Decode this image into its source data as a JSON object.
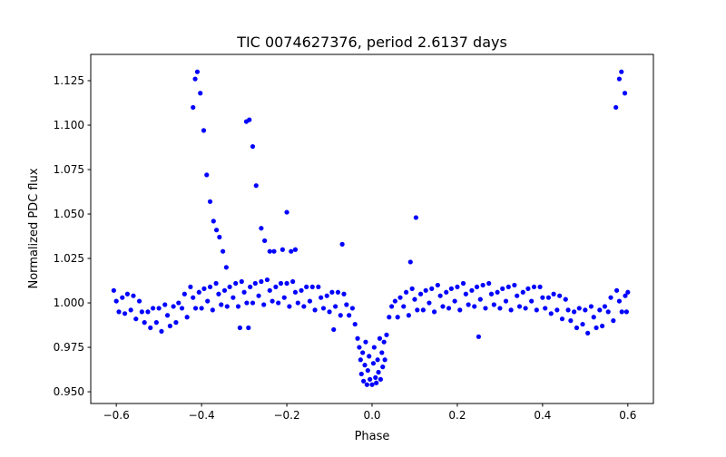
{
  "chart_data": {
    "type": "scatter",
    "title": "TIC 0074627376, period 2.6137 days",
    "xlabel": "Phase",
    "ylabel": "Normalized PDC flux",
    "xlim": [
      -0.66,
      0.66
    ],
    "ylim": [
      0.9434,
      1.1398
    ],
    "xticks": [
      -0.6,
      -0.4,
      -0.2,
      0.0,
      0.2,
      0.4,
      0.6
    ],
    "xtick_labels": [
      "−0.6",
      "−0.4",
      "−0.2",
      "0.0",
      "0.2",
      "0.4",
      "0.6"
    ],
    "yticks": [
      0.95,
      0.975,
      1.0,
      1.025,
      1.05,
      1.075,
      1.1,
      1.125
    ],
    "ytick_labels": [
      "0.950",
      "0.975",
      "1.000",
      "1.025",
      "1.050",
      "1.075",
      "1.100",
      "1.125"
    ],
    "grid": false,
    "marker_color": "#0000ff",
    "series": [
      {
        "name": "flux",
        "points": [
          [
            -0.606,
            1.007
          ],
          [
            -0.6,
            1.001
          ],
          [
            -0.594,
            0.995
          ],
          [
            -0.586,
            1.003
          ],
          [
            -0.58,
            0.994
          ],
          [
            -0.574,
            1.005
          ],
          [
            -0.566,
            0.996
          ],
          [
            -0.56,
            1.004
          ],
          [
            -0.554,
            0.991
          ],
          [
            -0.546,
            1.001
          ],
          [
            -0.54,
            0.995
          ],
          [
            -0.534,
            0.989
          ],
          [
            -0.526,
            0.995
          ],
          [
            -0.52,
            0.986
          ],
          [
            -0.514,
            0.997
          ],
          [
            -0.506,
            0.989
          ],
          [
            -0.5,
            0.997
          ],
          [
            -0.494,
            0.984
          ],
          [
            -0.486,
            0.999
          ],
          [
            -0.48,
            0.993
          ],
          [
            -0.474,
            0.987
          ],
          [
            -0.466,
            0.998
          ],
          [
            -0.46,
            0.989
          ],
          [
            -0.454,
            1.0
          ],
          [
            -0.446,
            0.997
          ],
          [
            -0.44,
            1.005
          ],
          [
            -0.434,
            0.992
          ],
          [
            -0.426,
            1.009
          ],
          [
            -0.42,
            1.003
          ],
          [
            -0.414,
            0.997
          ],
          [
            -0.406,
            1.006
          ],
          [
            -0.4,
            0.997
          ],
          [
            -0.394,
            1.008
          ],
          [
            -0.386,
            1.001
          ],
          [
            -0.38,
            1.009
          ],
          [
            -0.374,
            0.996
          ],
          [
            -0.366,
            1.011
          ],
          [
            -0.36,
            1.005
          ],
          [
            -0.354,
            0.999
          ],
          [
            -0.346,
            1.007
          ],
          [
            -0.34,
            0.998
          ],
          [
            -0.334,
            1.009
          ],
          [
            -0.326,
            1.003
          ],
          [
            -0.32,
            1.011
          ],
          [
            -0.314,
            0.998
          ],
          [
            -0.306,
            1.012
          ],
          [
            -0.3,
            1.006
          ],
          [
            -0.294,
            1.0
          ],
          [
            -0.286,
            1.009
          ],
          [
            -0.28,
            1.0
          ],
          [
            -0.274,
            1.011
          ],
          [
            -0.266,
            1.004
          ],
          [
            -0.26,
            1.012
          ],
          [
            -0.254,
            0.999
          ],
          [
            -0.246,
            1.013
          ],
          [
            -0.24,
            1.007
          ],
          [
            -0.234,
            1.001
          ],
          [
            -0.226,
            1.009
          ],
          [
            -0.22,
            1.0
          ],
          [
            -0.214,
            1.011
          ],
          [
            -0.206,
            1.003
          ],
          [
            -0.2,
            1.011
          ],
          [
            -0.194,
            0.998
          ],
          [
            -0.186,
            1.012
          ],
          [
            -0.18,
            1.006
          ],
          [
            -0.174,
            1.0
          ],
          [
            -0.166,
            1.007
          ],
          [
            -0.16,
            0.998
          ],
          [
            -0.154,
            1.009
          ],
          [
            -0.146,
            1.001
          ],
          [
            -0.14,
            1.009
          ],
          [
            -0.134,
            0.996
          ],
          [
            -0.126,
            1.009
          ],
          [
            -0.12,
            1.003
          ],
          [
            -0.114,
            0.997
          ],
          [
            -0.106,
            1.004
          ],
          [
            -0.1,
            0.995
          ],
          [
            -0.094,
            1.006
          ],
          [
            -0.086,
            0.998
          ],
          [
            -0.08,
            1.006
          ],
          [
            -0.074,
            0.993
          ],
          [
            -0.066,
            1.005
          ],
          [
            -0.06,
            0.999
          ],
          [
            -0.054,
            0.993
          ],
          [
            -0.046,
            0.997
          ],
          [
            -0.04,
            0.988
          ],
          [
            -0.034,
            0.98
          ],
          [
            -0.03,
            0.975
          ],
          [
            -0.027,
            0.968
          ],
          [
            -0.025,
            0.96
          ],
          [
            -0.022,
            0.972
          ],
          [
            -0.02,
            0.956
          ],
          [
            -0.017,
            0.965
          ],
          [
            -0.015,
            0.978
          ],
          [
            -0.012,
            0.954
          ],
          [
            -0.01,
            0.962
          ],
          [
            -0.007,
            0.97
          ],
          [
            -0.005,
            0.957
          ],
          [
            0.0,
            0.954
          ],
          [
            0.003,
            0.966
          ],
          [
            0.005,
            0.975
          ],
          [
            0.008,
            0.958
          ],
          [
            0.01,
            0.955
          ],
          [
            0.013,
            0.968
          ],
          [
            0.015,
            0.961
          ],
          [
            0.018,
            0.98
          ],
          [
            0.02,
            0.957
          ],
          [
            0.023,
            0.972
          ],
          [
            0.025,
            0.964
          ],
          [
            0.028,
            0.978
          ],
          [
            0.03,
            0.968
          ],
          [
            0.034,
            0.982
          ],
          [
            0.04,
            0.992
          ],
          [
            0.046,
            0.998
          ],
          [
            0.054,
            1.001
          ],
          [
            0.06,
            0.992
          ],
          [
            0.066,
            1.003
          ],
          [
            0.074,
            0.998
          ],
          [
            0.08,
            1.006
          ],
          [
            0.086,
            0.993
          ],
          [
            0.094,
            1.008
          ],
          [
            0.1,
            1.002
          ],
          [
            0.106,
            0.996
          ],
          [
            0.114,
            1.005
          ],
          [
            0.12,
            0.996
          ],
          [
            0.126,
            1.007
          ],
          [
            0.134,
            1.0
          ],
          [
            0.14,
            1.008
          ],
          [
            0.146,
            0.995
          ],
          [
            0.154,
            1.01
          ],
          [
            0.16,
            1.004
          ],
          [
            0.166,
            0.998
          ],
          [
            0.174,
            1.006
          ],
          [
            0.18,
            0.997
          ],
          [
            0.186,
            1.008
          ],
          [
            0.194,
            1.001
          ],
          [
            0.2,
            1.009
          ],
          [
            0.206,
            0.996
          ],
          [
            0.214,
            1.011
          ],
          [
            0.22,
            1.005
          ],
          [
            0.226,
            0.999
          ],
          [
            0.234,
            1.007
          ],
          [
            0.24,
            0.998
          ],
          [
            0.246,
            1.009
          ],
          [
            0.254,
            1.002
          ],
          [
            0.26,
            1.01
          ],
          [
            0.266,
            0.997
          ],
          [
            0.274,
            1.011
          ],
          [
            0.28,
            1.005
          ],
          [
            0.286,
            0.999
          ],
          [
            0.294,
            1.006
          ],
          [
            0.3,
            0.997
          ],
          [
            0.306,
            1.008
          ],
          [
            0.314,
            1.001
          ],
          [
            0.32,
            1.009
          ],
          [
            0.326,
            0.996
          ],
          [
            0.334,
            1.01
          ],
          [
            0.34,
            1.004
          ],
          [
            0.346,
            0.998
          ],
          [
            0.354,
            1.006
          ],
          [
            0.36,
            0.997
          ],
          [
            0.366,
            1.008
          ],
          [
            0.374,
            1.001
          ],
          [
            0.38,
            1.009
          ],
          [
            0.386,
            0.996
          ],
          [
            0.394,
            1.009
          ],
          [
            0.4,
            1.003
          ],
          [
            0.406,
            0.997
          ],
          [
            0.414,
            1.003
          ],
          [
            0.42,
            0.994
          ],
          [
            0.426,
            1.005
          ],
          [
            0.434,
            0.996
          ],
          [
            0.44,
            1.004
          ],
          [
            0.446,
            0.991
          ],
          [
            0.454,
            1.002
          ],
          [
            0.46,
            0.996
          ],
          [
            0.466,
            0.99
          ],
          [
            0.474,
            0.995
          ],
          [
            0.48,
            0.986
          ],
          [
            0.486,
            0.997
          ],
          [
            0.494,
            0.988
          ],
          [
            0.5,
            0.996
          ],
          [
            0.506,
            0.983
          ],
          [
            0.514,
            0.998
          ],
          [
            0.52,
            0.992
          ],
          [
            0.526,
            0.986
          ],
          [
            0.534,
            0.996
          ],
          [
            0.54,
            0.987
          ],
          [
            0.546,
            0.998
          ],
          [
            0.554,
            0.995
          ],
          [
            0.56,
            1.003
          ],
          [
            0.566,
            0.99
          ],
          [
            0.574,
            1.007
          ],
          [
            0.58,
            1.001
          ],
          [
            0.586,
            0.995
          ],
          [
            0.594,
            1.004
          ],
          [
            0.597,
            0.995
          ],
          [
            0.6,
            1.006
          ],
          [
            -0.42,
            1.11
          ],
          [
            -0.415,
            1.126
          ],
          [
            -0.41,
            1.13
          ],
          [
            -0.403,
            1.118
          ],
          [
            -0.395,
            1.097
          ],
          [
            -0.388,
            1.072
          ],
          [
            -0.38,
            1.057
          ],
          [
            -0.372,
            1.046
          ],
          [
            -0.365,
            1.041
          ],
          [
            -0.358,
            1.037
          ],
          [
            -0.35,
            1.029
          ],
          [
            -0.342,
            1.02
          ],
          [
            -0.295,
            1.102
          ],
          [
            -0.288,
            1.103
          ],
          [
            -0.28,
            1.088
          ],
          [
            -0.272,
            1.066
          ],
          [
            -0.26,
            1.042
          ],
          [
            -0.252,
            1.035
          ],
          [
            -0.24,
            1.029
          ],
          [
            -0.23,
            1.029
          ],
          [
            -0.21,
            1.03
          ],
          [
            -0.2,
            1.051
          ],
          [
            -0.19,
            1.029
          ],
          [
            -0.18,
            1.03
          ],
          [
            -0.07,
            1.033
          ],
          [
            0.09,
            1.023
          ],
          [
            0.103,
            1.048
          ],
          [
            0.572,
            1.11
          ],
          [
            0.58,
            1.126
          ],
          [
            0.585,
            1.13
          ],
          [
            0.593,
            1.118
          ],
          [
            0.25,
            0.981
          ],
          [
            -0.29,
            0.986
          ],
          [
            -0.31,
            0.986
          ],
          [
            -0.09,
            0.985
          ]
        ]
      }
    ]
  }
}
